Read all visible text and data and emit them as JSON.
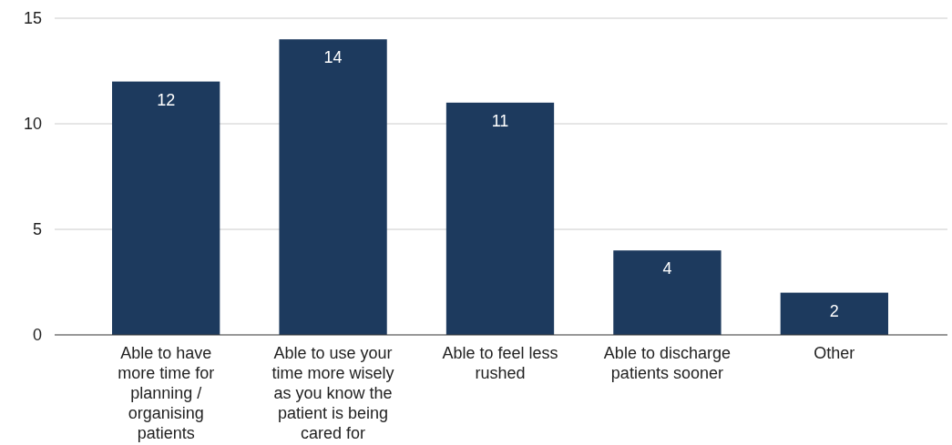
{
  "chart_data": {
    "type": "bar",
    "categories": [
      "Able to have more time for planning / organising patients",
      "Able to use your time more wisely as you know the patient is being cared for",
      "Able to feel less rushed",
      "Able to discharge patients sooner",
      "Other"
    ],
    "values": [
      12,
      14,
      11,
      4,
      2
    ],
    "color": "#1d3a5e",
    "ylim": [
      0,
      15
    ],
    "yticks": [
      0,
      5,
      10,
      15
    ],
    "grid": "y",
    "data_labels": true
  }
}
